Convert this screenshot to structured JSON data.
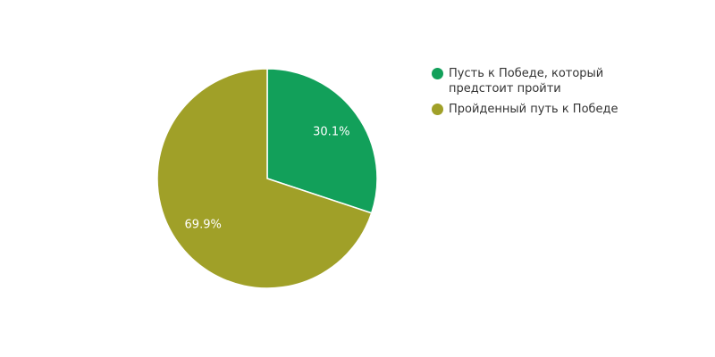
{
  "chart_data": {
    "type": "pie",
    "categories": [
      "Пусть к Победе, который предстоит пройти",
      "Пройденный путь к Победе"
    ],
    "values": [
      30.1,
      69.9
    ],
    "value_labels": [
      "30.1%",
      "69.9%"
    ],
    "colors": [
      "#12a05a",
      "#a0a028"
    ]
  }
}
